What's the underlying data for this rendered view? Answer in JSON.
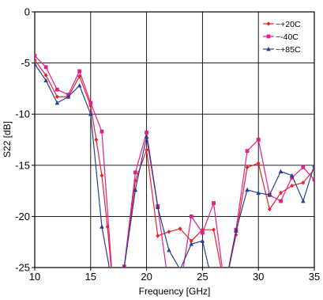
{
  "chart_data": {
    "type": "line",
    "xlabel": "Frequency [GHz]",
    "ylabel": "S22 [dB]",
    "xlim": [
      10,
      35
    ],
    "ylim": [
      -25,
      0
    ],
    "x_ticks": [
      "10",
      "15",
      "20",
      "25",
      "30",
      "35"
    ],
    "y_ticks": [
      "0",
      "-5",
      "-10",
      "-15",
      "-20",
      "-25"
    ],
    "grid": true,
    "legend_position": "top-right",
    "series": [
      {
        "name": "~+20C",
        "color": "#e8202a",
        "marker": "diamond",
        "x": [
          10,
          11,
          12,
          13,
          14,
          15,
          15.5,
          16,
          16.5,
          17,
          17.5,
          18,
          19,
          20,
          21,
          22,
          23,
          24,
          25,
          26,
          27,
          28,
          29,
          30,
          31,
          32,
          33,
          34,
          35
        ],
        "y": [
          -4.7,
          -6.2,
          -8.3,
          -8.3,
          -6.3,
          -9.2,
          -12.5,
          -16.0,
          -21.0,
          -27,
          -27,
          -25.0,
          -16.5,
          -13.5,
          -21.9,
          -21.5,
          -21.2,
          -22.4,
          -21.3,
          -21.3,
          -27,
          -21.8,
          -15.2,
          -14.8,
          -19.3,
          -17.7,
          -17.0,
          -16.7,
          -15.4
        ]
      },
      {
        "name": "~-40C",
        "color": "#e0208c",
        "marker": "square",
        "x": [
          10,
          11,
          12,
          13,
          14,
          15,
          16,
          17,
          18,
          19,
          20,
          21,
          22,
          23,
          24,
          25,
          26,
          27,
          28,
          29,
          30,
          31,
          32,
          33,
          34,
          35
        ],
        "y": [
          -4.3,
          -5.4,
          -7.6,
          -8.1,
          -5.8,
          -8.9,
          -11.7,
          -27,
          -24.9,
          -15.7,
          -11.8,
          -19.0,
          -27,
          -27,
          -20.0,
          -21.6,
          -18.7,
          -27,
          -21.3,
          -13.6,
          -12.5,
          -17.9,
          -18.5,
          -16.2,
          -15.2,
          -16.4
        ]
      },
      {
        "name": "~+85C",
        "color": "#2b3f8c",
        "marker": "triangle",
        "x": [
          10,
          11,
          12,
          13,
          14,
          15,
          16,
          17,
          18,
          19,
          20,
          21,
          22,
          23,
          24,
          25,
          26,
          27,
          28,
          29,
          30,
          31,
          32,
          33,
          34,
          35
        ],
        "y": [
          -5.1,
          -6.7,
          -8.9,
          -8.3,
          -7.2,
          -10.0,
          -21.0,
          -27,
          -25.0,
          -17.4,
          -12.2,
          -19.1,
          -23.3,
          -25.2,
          -22.7,
          -22.4,
          -27,
          -27,
          -21.4,
          -17.4,
          -17.7,
          -17.9,
          -15.6,
          -16.0,
          -18.5,
          -15.0
        ]
      }
    ]
  }
}
